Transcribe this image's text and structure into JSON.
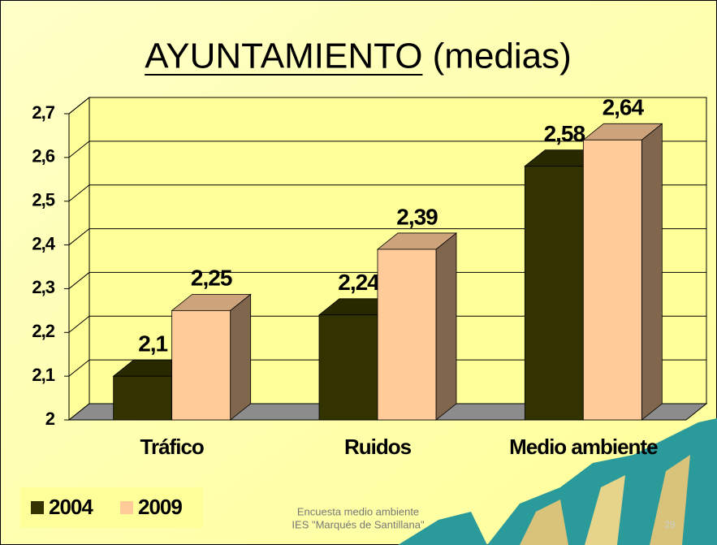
{
  "chart_data": {
    "type": "bar3d",
    "title": "AYUNTAMIENTO (medias)",
    "categories": [
      "Tráfico",
      "Ruidos",
      "Medio ambiente"
    ],
    "series": [
      {
        "name": "2004",
        "color": "#333300",
        "values": [
          2.1,
          2.24,
          2.58
        ],
        "value_labels": [
          "2,1",
          "2,24",
          "2,58"
        ]
      },
      {
        "name": "2009",
        "color": "#ffcc99",
        "values": [
          2.25,
          2.39,
          2.64
        ],
        "value_labels": [
          "2,25",
          "2,39",
          "2,64"
        ]
      }
    ],
    "ylim": [
      2,
      2.7
    ],
    "yticks": [
      2,
      {
        "value": 2.1,
        "label": "2,1"
      },
      {
        "value": 2.2,
        "label": "2,2"
      },
      {
        "value": 2.3,
        "label": "2,3"
      },
      {
        "value": 2.4,
        "label": "2,4"
      },
      {
        "value": 2.5,
        "label": "2,5"
      },
      {
        "value": 2.6,
        "label": "2,6"
      },
      {
        "value": 2.7,
        "label": "2,7"
      }
    ],
    "grid": true,
    "legend": "bottom-left"
  },
  "footer": {
    "lines": [
      "Encuesta medio ambiente",
      "IES \"Marqués de Santillana\""
    ],
    "page": "29"
  }
}
